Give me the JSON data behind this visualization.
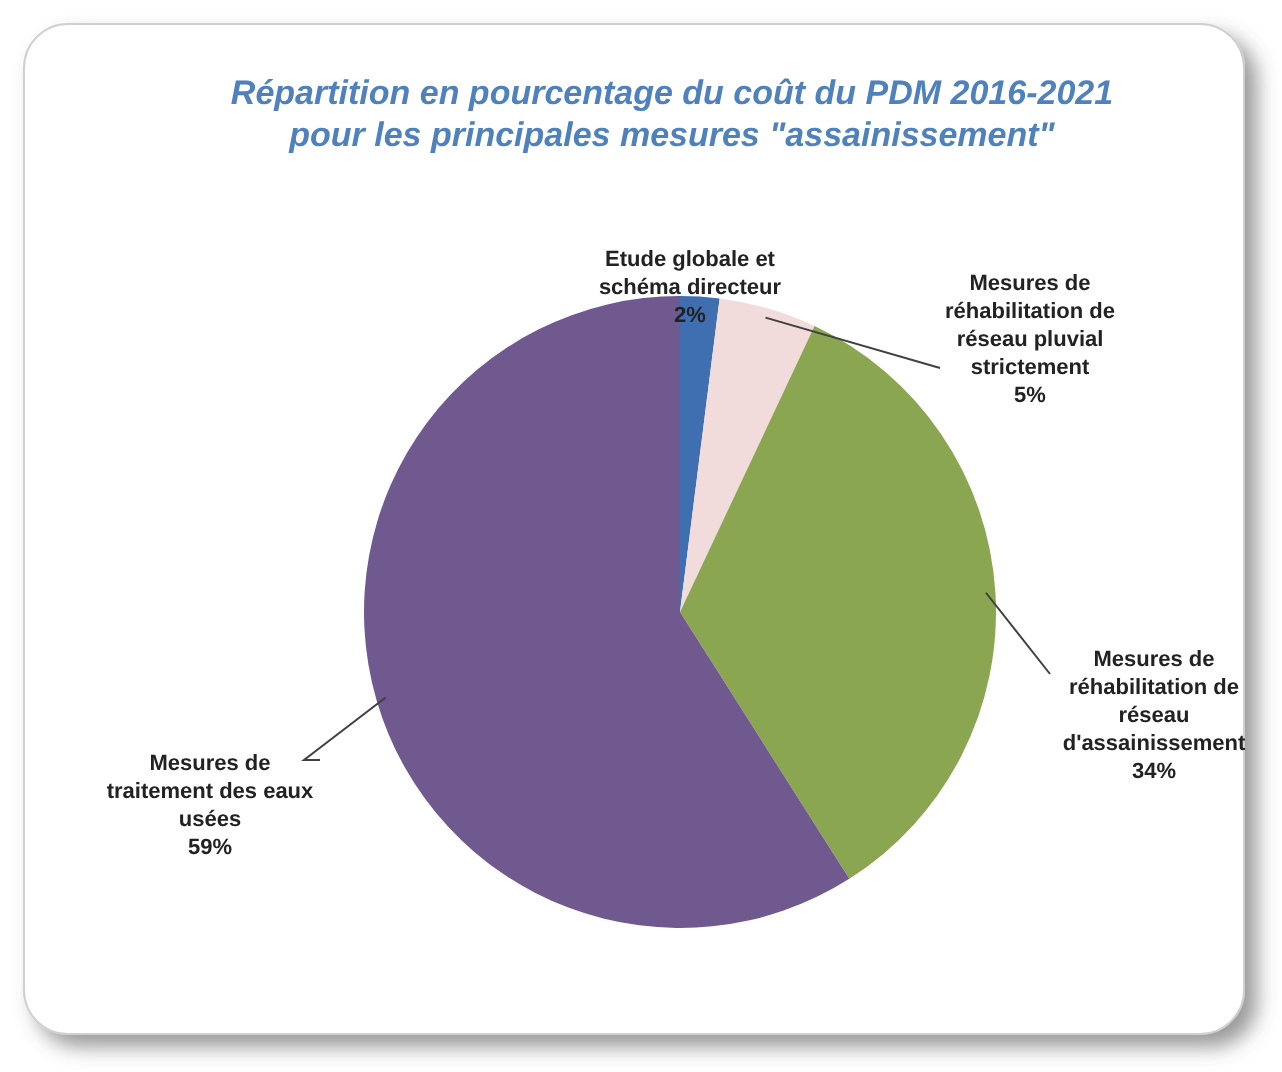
{
  "chart_data": {
    "type": "pie",
    "title": "Répartition en pourcentage du coût du PDM 2016-2021 pour les principales mesures \"assainissement\"",
    "categories": [
      "Etude globale et schéma directeur",
      "Mesures de réhabilitation de réseau pluvial strictement",
      "Mesures de réhabilitation de réseau d'assainissement",
      "Mesures de traitement des eaux usées"
    ],
    "values": [
      2,
      5,
      34,
      59
    ],
    "colors": [
      "#3f6fb0",
      "#f2dcdb",
      "#8aa650",
      "#70598e"
    ],
    "value_labels": [
      "2%",
      "5%",
      "34%",
      "59%"
    ]
  }
}
